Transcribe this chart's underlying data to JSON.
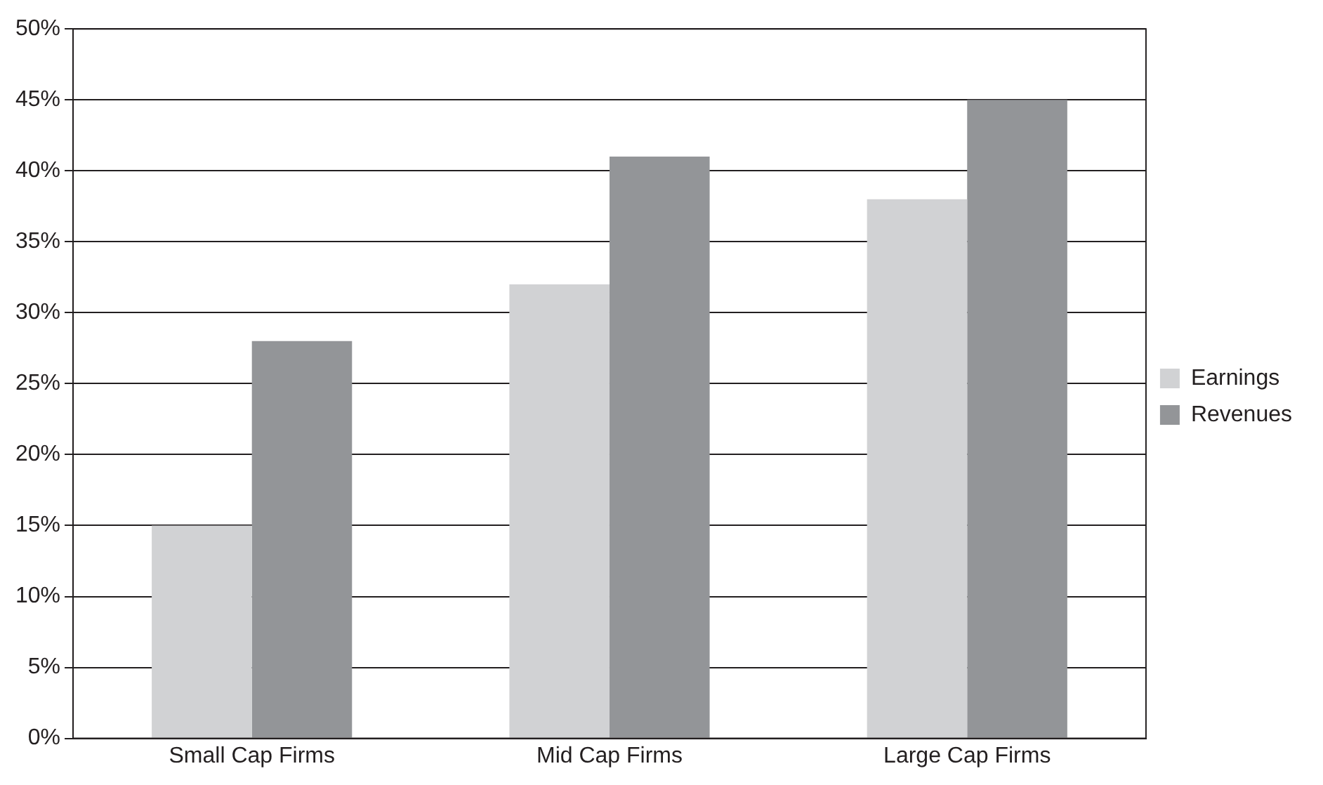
{
  "chart_data": {
    "type": "bar",
    "categories": [
      "Small Cap Firms",
      "Mid Cap Firms",
      "Large Cap Firms"
    ],
    "series": [
      {
        "name": "Earnings",
        "color": "#d1d2d4",
        "values": [
          15,
          32,
          38
        ]
      },
      {
        "name": "Revenues",
        "color": "#939598",
        "values": [
          28,
          41,
          45
        ]
      }
    ],
    "ylim": [
      0,
      50
    ],
    "yticks": [
      {
        "value": 0,
        "label": "0%"
      },
      {
        "value": 5,
        "label": "5%"
      },
      {
        "value": 10,
        "label": "10%"
      },
      {
        "value": 15,
        "label": "15%"
      },
      {
        "value": 20,
        "label": "20%"
      },
      {
        "value": 25,
        "label": "25%"
      },
      {
        "value": 30,
        "label": "30%"
      },
      {
        "value": 35,
        "label": "35%"
      },
      {
        "value": 40,
        "label": "40%"
      },
      {
        "value": 45,
        "label": "45%"
      },
      {
        "value": 50,
        "label": "50%"
      }
    ],
    "grid": "y",
    "legend": "right"
  }
}
